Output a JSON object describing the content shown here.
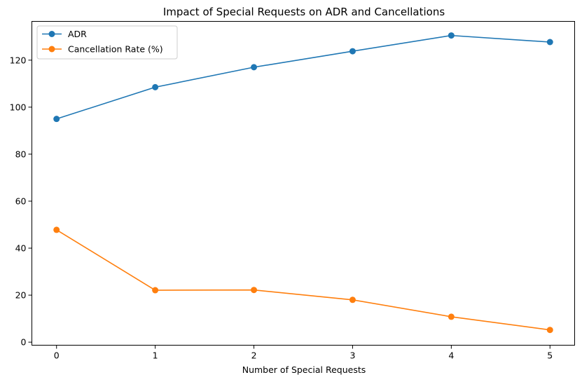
{
  "chart_data": {
    "type": "line",
    "title": "Impact of Special Requests on ADR and Cancellations",
    "xlabel": "Number of Special Requests",
    "ylabel": "",
    "x": [
      0,
      1,
      2,
      3,
      4,
      5
    ],
    "xlim": [
      -0.25,
      5.25
    ],
    "ylim": [
      -1.3,
      136.5
    ],
    "xticks": [
      0,
      1,
      2,
      3,
      4,
      5
    ],
    "yticks": [
      0,
      20,
      40,
      60,
      80,
      100,
      120
    ],
    "grid": false,
    "legend_position": "top-left",
    "series": [
      {
        "name": "ADR",
        "color": "#1f77b4",
        "values": [
          95.0,
          108.5,
          117.0,
          123.8,
          130.5,
          127.7
        ]
      },
      {
        "name": "Cancellation Rate (%)",
        "color": "#ff7f0e",
        "values": [
          47.8,
          22.1,
          22.2,
          18.0,
          10.8,
          5.2
        ]
      }
    ]
  }
}
